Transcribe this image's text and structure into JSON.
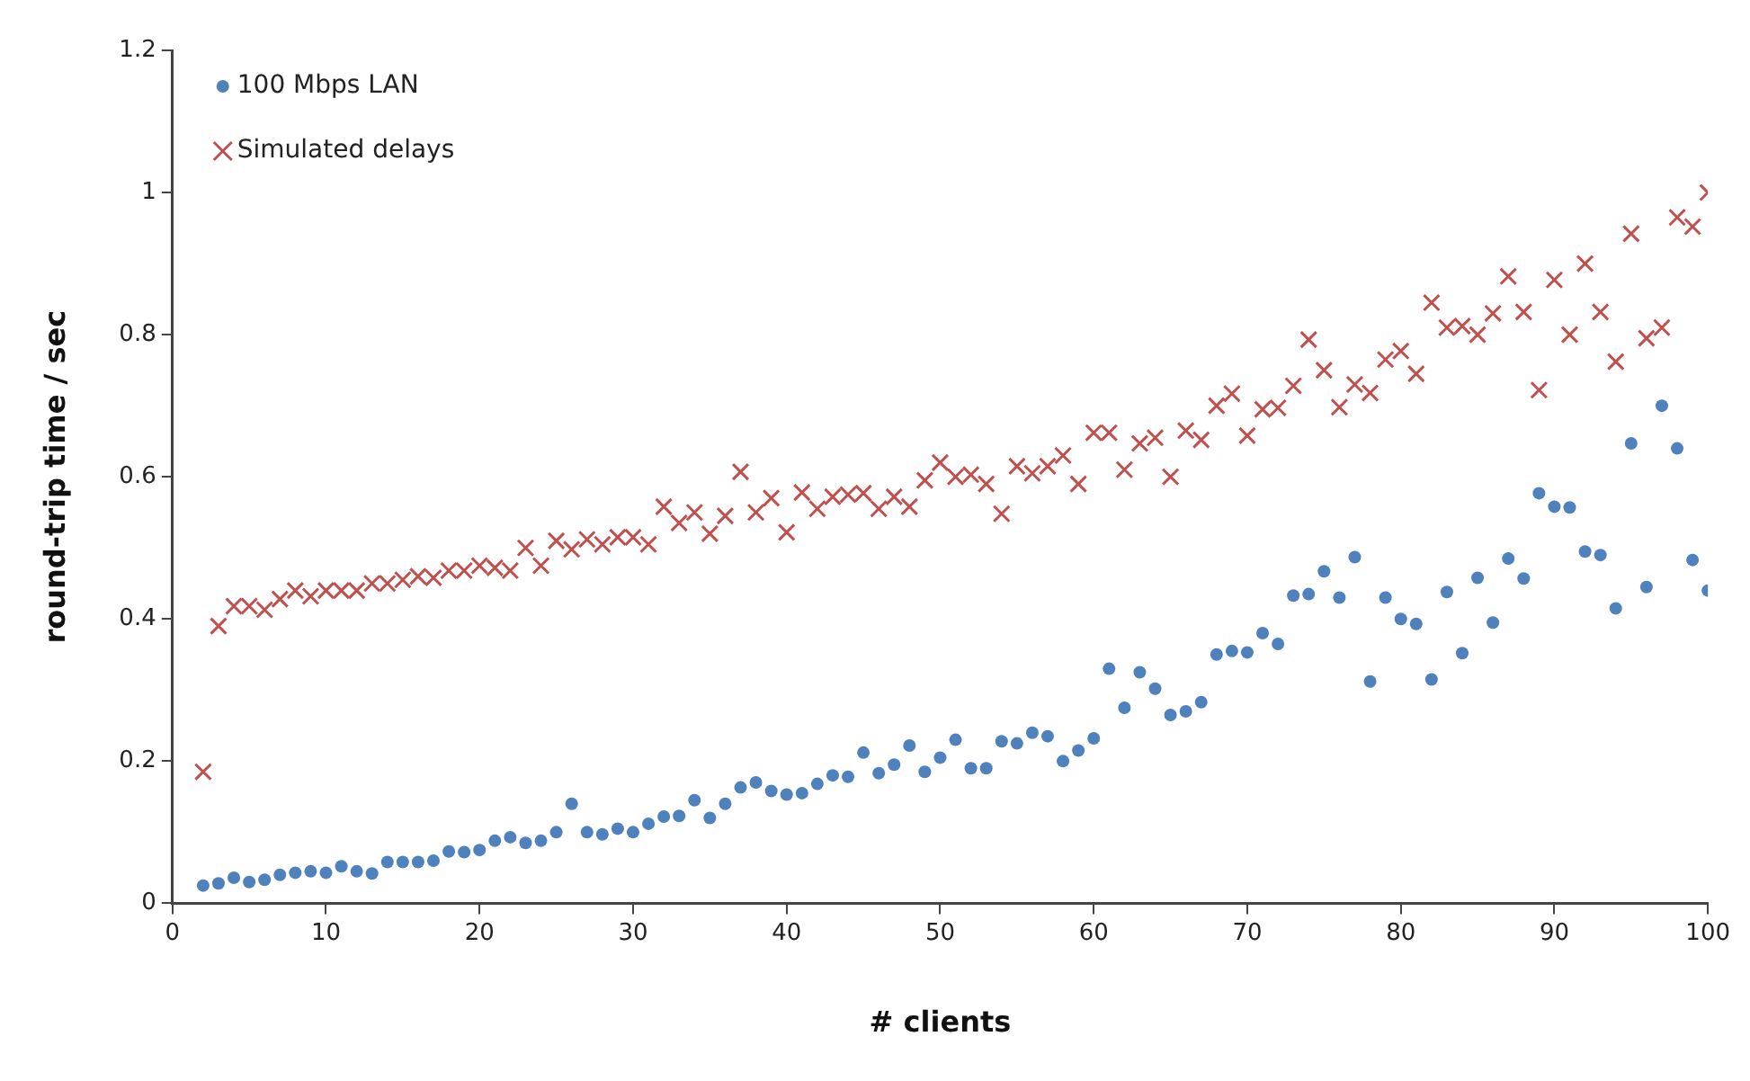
{
  "chart_data": {
    "type": "scatter",
    "xlabel": "# clients",
    "ylabel": "round-trip time / sec",
    "x": [
      2,
      3,
      4,
      5,
      6,
      7,
      8,
      9,
      10,
      11,
      12,
      13,
      14,
      15,
      16,
      17,
      18,
      19,
      20,
      21,
      22,
      23,
      24,
      25,
      26,
      27,
      28,
      29,
      30,
      31,
      32,
      33,
      34,
      35,
      36,
      37,
      38,
      39,
      40,
      41,
      42,
      43,
      44,
      45,
      46,
      47,
      48,
      49,
      50,
      51,
      52,
      53,
      54,
      55,
      56,
      57,
      58,
      59,
      60,
      61,
      62,
      63,
      64,
      65,
      66,
      67,
      68,
      69,
      70,
      71,
      72,
      73,
      74,
      75,
      76,
      77,
      78,
      79,
      80,
      81,
      82,
      83,
      84,
      85,
      86,
      87,
      88,
      89,
      90,
      91,
      92,
      93,
      94,
      95,
      96,
      97,
      98,
      99,
      100
    ],
    "series": [
      {
        "name": "100 Mbps LAN",
        "color": "#4f81bd",
        "marker": "circle",
        "values": [
          0.025,
          0.028,
          0.036,
          0.03,
          0.033,
          0.04,
          0.043,
          0.045,
          0.043,
          0.052,
          0.045,
          0.042,
          0.058,
          0.058,
          0.058,
          0.06,
          0.073,
          0.072,
          0.075,
          0.088,
          0.093,
          0.085,
          0.088,
          0.1,
          0.14,
          0.1,
          0.097,
          0.105,
          0.1,
          0.112,
          0.122,
          0.123,
          0.145,
          0.12,
          0.14,
          0.163,
          0.17,
          0.158,
          0.153,
          0.155,
          0.168,
          0.18,
          0.178,
          0.212,
          0.183,
          0.195,
          0.222,
          0.185,
          0.205,
          0.23,
          0.19,
          0.19,
          0.228,
          0.225,
          0.24,
          0.235,
          0.2,
          0.215,
          0.232,
          0.33,
          0.275,
          0.325,
          0.302,
          0.265,
          0.27,
          0.283,
          0.35,
          0.355,
          0.353,
          0.38,
          0.365,
          0.433,
          0.435,
          0.467,
          0.43,
          0.487,
          0.312,
          0.43,
          0.4,
          0.393,
          0.315,
          0.438,
          0.352,
          0.458,
          0.395,
          0.485,
          0.457,
          0.577,
          0.558,
          0.557,
          0.495,
          0.49,
          0.415,
          0.647,
          0.445,
          0.7,
          0.64,
          0.483,
          0.44
        ]
      },
      {
        "name": "Simulated delays",
        "color": "#c0504d",
        "marker": "cross",
        "values": [
          0.185,
          0.39,
          0.418,
          0.418,
          0.413,
          0.428,
          0.44,
          0.432,
          0.44,
          0.44,
          0.44,
          0.45,
          0.45,
          0.455,
          0.46,
          0.458,
          0.468,
          0.468,
          0.475,
          0.472,
          0.468,
          0.5,
          0.475,
          0.51,
          0.498,
          0.512,
          0.505,
          0.515,
          0.515,
          0.505,
          0.558,
          0.535,
          0.55,
          0.52,
          0.545,
          0.607,
          0.55,
          0.57,
          0.522,
          0.578,
          0.555,
          0.572,
          0.575,
          0.577,
          0.555,
          0.572,
          0.558,
          0.595,
          0.62,
          0.6,
          0.603,
          0.59,
          0.548,
          0.615,
          0.605,
          0.615,
          0.63,
          0.59,
          0.662,
          0.662,
          0.61,
          0.647,
          0.655,
          0.6,
          0.665,
          0.652,
          0.7,
          0.717,
          0.658,
          0.695,
          0.697,
          0.728,
          0.793,
          0.75,
          0.698,
          0.73,
          0.718,
          0.765,
          0.777,
          0.745,
          0.845,
          0.81,
          0.812,
          0.8,
          0.83,
          0.882,
          0.832,
          0.722,
          0.877,
          0.8,
          0.9,
          0.832,
          0.762,
          0.942,
          0.795,
          0.81,
          0.965,
          0.952,
          1.0
        ]
      }
    ],
    "xlim": [
      0,
      100
    ],
    "xticks": [
      0,
      10,
      20,
      30,
      40,
      50,
      60,
      70,
      80,
      90,
      100
    ],
    "ylim": [
      0,
      1.2
    ],
    "yticks": [
      0,
      0.2,
      0.4,
      0.6,
      0.8,
      1,
      1.2
    ],
    "grid": false,
    "legend": "top left"
  }
}
